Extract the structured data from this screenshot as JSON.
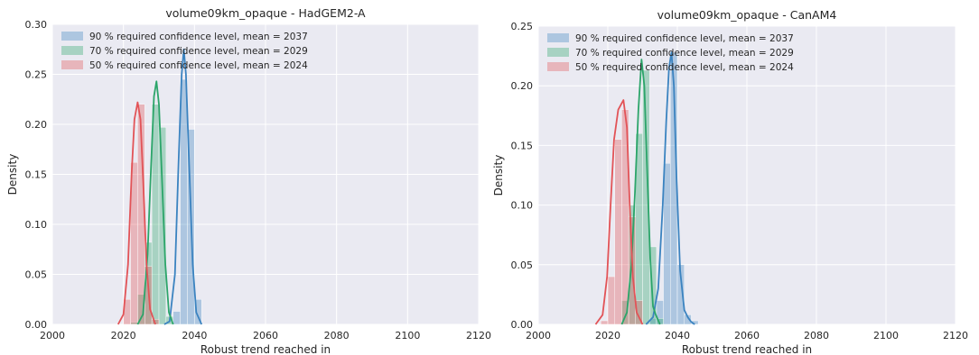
{
  "chart_data": [
    {
      "type": "histogram",
      "title": "volume09km_opaque - HadGEM2-A",
      "xlabel": "Robust trend reached in",
      "ylabel": "Density",
      "xlim": [
        2000,
        2120
      ],
      "ylim": [
        0,
        0.3
      ],
      "xticks": [
        2000,
        2020,
        2040,
        2060,
        2080,
        2100,
        2120
      ],
      "yticks": [
        0.0,
        0.05,
        0.1,
        0.15,
        0.2,
        0.25,
        0.3
      ],
      "grid": true,
      "legend_position": "top-left",
      "bin_width": 2,
      "series": [
        {
          "name": "90 % required confidence level, mean = 2037",
          "color": "#3b83c0",
          "bins": [
            [
              2034,
              0.013
            ],
            [
              2036,
              0.245
            ],
            [
              2038,
              0.195
            ],
            [
              2040,
              0.025
            ]
          ],
          "kde": [
            [
              2031.5,
              0.0
            ],
            [
              2033,
              0.003
            ],
            [
              2034.5,
              0.05
            ],
            [
              2035.5,
              0.16
            ],
            [
              2036.4,
              0.25
            ],
            [
              2037,
              0.275
            ],
            [
              2037.6,
              0.25
            ],
            [
              2038.5,
              0.16
            ],
            [
              2039.5,
              0.06
            ],
            [
              2040.5,
              0.012
            ],
            [
              2042,
              0.0
            ]
          ]
        },
        {
          "name": "70 % required confidence level, mean = 2029",
          "color": "#2ca56a",
          "bins": [
            [
              2022,
              0.002
            ],
            [
              2024,
              0.03
            ],
            [
              2026,
              0.082
            ],
            [
              2028,
              0.22
            ],
            [
              2030,
              0.197
            ],
            [
              2032,
              0.008
            ]
          ],
          "kde": [
            [
              2024,
              0.0
            ],
            [
              2025.5,
              0.01
            ],
            [
              2026.8,
              0.07
            ],
            [
              2027.8,
              0.16
            ],
            [
              2028.6,
              0.228
            ],
            [
              2029.3,
              0.243
            ],
            [
              2030,
              0.22
            ],
            [
              2030.8,
              0.15
            ],
            [
              2031.8,
              0.06
            ],
            [
              2032.8,
              0.012
            ],
            [
              2034,
              0.0
            ]
          ]
        },
        {
          "name": "50 % required confidence level, mean = 2024",
          "color": "#e25357",
          "bins": [
            [
              2020,
              0.025
            ],
            [
              2022,
              0.162
            ],
            [
              2024,
              0.22
            ],
            [
              2026,
              0.058
            ],
            [
              2028,
              0.005
            ]
          ],
          "kde": [
            [
              2018.5,
              0.0
            ],
            [
              2020,
              0.01
            ],
            [
              2021.3,
              0.06
            ],
            [
              2022.3,
              0.15
            ],
            [
              2023.1,
              0.205
            ],
            [
              2024,
              0.222
            ],
            [
              2024.8,
              0.205
            ],
            [
              2025.6,
              0.14
            ],
            [
              2026.5,
              0.06
            ],
            [
              2027.5,
              0.015
            ],
            [
              2029,
              0.0
            ]
          ]
        }
      ]
    },
    {
      "type": "histogram",
      "title": "volume09km_opaque - CanAM4",
      "xlabel": "Robust trend reached in",
      "ylabel": "Density",
      "xlim": [
        2000,
        2120
      ],
      "ylim": [
        0,
        0.25
      ],
      "xticks": [
        2000,
        2020,
        2040,
        2060,
        2080,
        2100,
        2120
      ],
      "yticks": [
        0.0,
        0.05,
        0.1,
        0.15,
        0.2,
        0.25
      ],
      "grid": true,
      "legend_position": "top-left",
      "bin_width": 2,
      "series": [
        {
          "name": "90 % required confidence level, mean = 2037",
          "color": "#3b83c0",
          "bins": [
            [
              2032,
              0.005
            ],
            [
              2034,
              0.02
            ],
            [
              2036,
              0.135
            ],
            [
              2038,
              0.228
            ],
            [
              2040,
              0.05
            ],
            [
              2042,
              0.008
            ],
            [
              2044,
              0.003
            ]
          ],
          "kde": [
            [
              2031,
              0.0
            ],
            [
              2033,
              0.006
            ],
            [
              2034.5,
              0.03
            ],
            [
              2035.8,
              0.1
            ],
            [
              2036.8,
              0.17
            ],
            [
              2037.6,
              0.215
            ],
            [
              2038.3,
              0.228
            ],
            [
              2039,
              0.2
            ],
            [
              2039.8,
              0.12
            ],
            [
              2040.8,
              0.045
            ],
            [
              2042,
              0.012
            ],
            [
              2043,
              0.006
            ],
            [
              2044,
              0.002
            ],
            [
              2045,
              0.0
            ]
          ]
        },
        {
          "name": "70 % required confidence level, mean = 2029",
          "color": "#2ca56a",
          "bins": [
            [
              2024,
              0.02
            ],
            [
              2026,
              0.1
            ],
            [
              2028,
              0.16
            ],
            [
              2030,
              0.213
            ],
            [
              2032,
              0.065
            ],
            [
              2034,
              0.005
            ]
          ],
          "kde": [
            [
              2024,
              0.0
            ],
            [
              2025.5,
              0.01
            ],
            [
              2026.8,
              0.05
            ],
            [
              2027.8,
              0.11
            ],
            [
              2028.8,
              0.18
            ],
            [
              2029.7,
              0.222
            ],
            [
              2030.5,
              0.2
            ],
            [
              2031.3,
              0.13
            ],
            [
              2032.2,
              0.055
            ],
            [
              2033,
              0.015
            ],
            [
              2033.8,
              0.008
            ],
            [
              2035,
              0.0
            ]
          ]
        },
        {
          "name": "50 % required confidence level, mean = 2024",
          "color": "#e25357",
          "bins": [
            [
              2018,
              0.003
            ],
            [
              2020,
              0.04
            ],
            [
              2022,
              0.155
            ],
            [
              2024,
              0.18
            ],
            [
              2026,
              0.09
            ],
            [
              2028,
              0.02
            ]
          ],
          "kde": [
            [
              2016.5,
              0.0
            ],
            [
              2018.5,
              0.008
            ],
            [
              2019.8,
              0.04
            ],
            [
              2020.8,
              0.1
            ],
            [
              2021.8,
              0.155
            ],
            [
              2023,
              0.18
            ],
            [
              2024.5,
              0.188
            ],
            [
              2025.5,
              0.165
            ],
            [
              2026.3,
              0.1
            ],
            [
              2027.2,
              0.04
            ],
            [
              2028.3,
              0.01
            ],
            [
              2030,
              0.0
            ]
          ]
        }
      ]
    }
  ]
}
